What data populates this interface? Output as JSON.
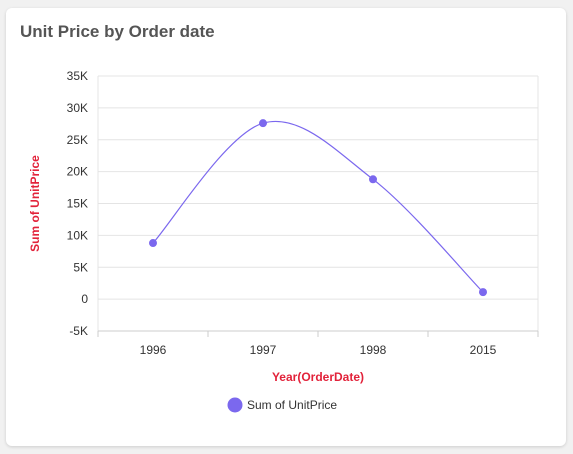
{
  "card": {
    "title": "Unit Price by Order date"
  },
  "colors": {
    "series": "#7b68ee",
    "axis_title": "#e2223a",
    "grid": "#e4e4e4",
    "axis": "#cccccc"
  },
  "chart_data": {
    "type": "line",
    "title": "Unit Price by Order date",
    "xlabel": "Year(OrderDate)",
    "ylabel": "Sum of UnitPrice",
    "categories": [
      "1996",
      "1997",
      "1998",
      "2015"
    ],
    "series": [
      {
        "name": "Sum of UnitPrice",
        "values": [
          8800,
          27600,
          18800,
          1100
        ]
      }
    ],
    "ylim": [
      -5000,
      35000
    ],
    "yticks": [
      -5000,
      0,
      5000,
      10000,
      15000,
      20000,
      25000,
      30000,
      35000
    ],
    "ytick_labels": [
      "-5K",
      "0",
      "5K",
      "10K",
      "15K",
      "20K",
      "25K",
      "30K",
      "35K"
    ],
    "grid": true,
    "legend": "bottom",
    "smooth": true
  }
}
